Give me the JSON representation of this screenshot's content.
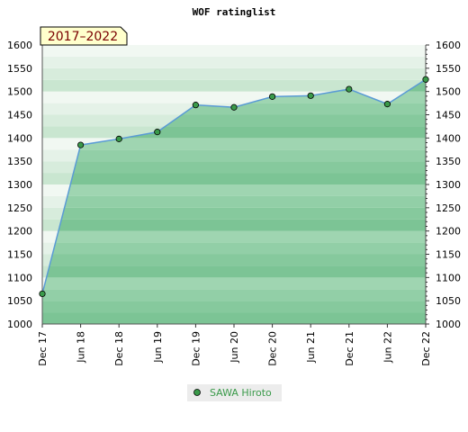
{
  "chart_data": {
    "type": "area",
    "title": "WOF ratinglist",
    "badge": "2017–2022",
    "x": [
      "Dec 17",
      "Jun 18",
      "Dec 18",
      "Jun 19",
      "Dec 19",
      "Jun 20",
      "Dec 20",
      "Jun 21",
      "Dec 21",
      "Jun 22",
      "Dec 22"
    ],
    "series": [
      {
        "name": "SAWA Hiroto",
        "values": [
          1065,
          1385,
          1398,
          1413,
          1471,
          1466,
          1489,
          1491,
          1505,
          1473,
          1526
        ]
      }
    ],
    "ylim": [
      1000,
      1600
    ],
    "yticks": [
      1000,
      1050,
      1100,
      1150,
      1200,
      1250,
      1300,
      1350,
      1400,
      1450,
      1500,
      1550,
      1600
    ],
    "xlabel": "",
    "ylabel": "",
    "grid": true,
    "legend_position": "bottom",
    "colors": {
      "line": "#5a9bd5",
      "marker": "#3a9a4a",
      "legend_text": "#3a9a4a",
      "badge_fill": "#ffffcc",
      "badge_text": "#7a0000"
    }
  }
}
